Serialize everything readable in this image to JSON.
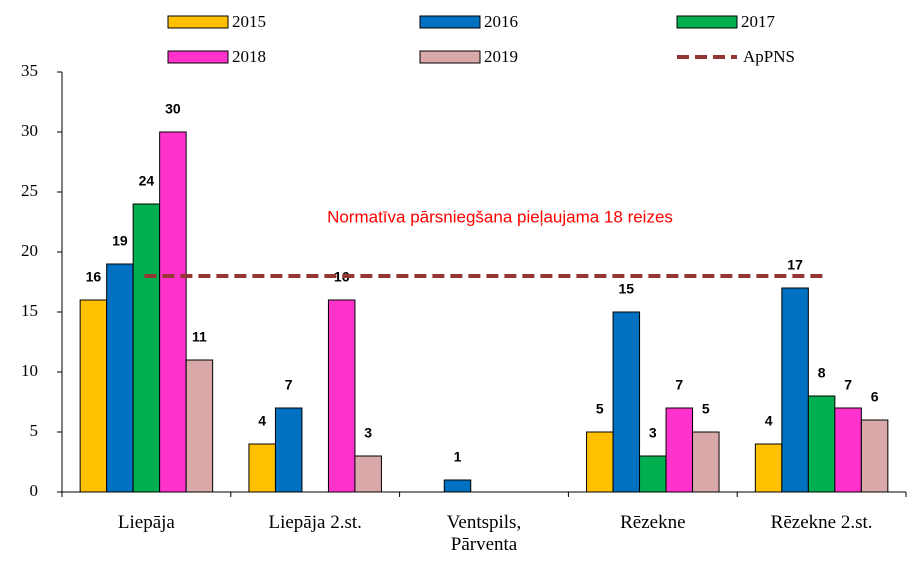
{
  "chart_data": {
    "type": "bar",
    "categories": [
      "Liepāja",
      "Liepāja 2.st.",
      "Ventspils, Pārventa",
      "Rēzekne",
      "Rēzekne 2.st."
    ],
    "series": [
      {
        "name": "2015",
        "color": "#ffc000",
        "values": [
          16,
          4,
          null,
          5,
          4
        ]
      },
      {
        "name": "2016",
        "color": "#0070c0",
        "values": [
          19,
          7,
          1,
          15,
          17
        ]
      },
      {
        "name": "2017",
        "color": "#00b050",
        "values": [
          24,
          null,
          null,
          3,
          8
        ]
      },
      {
        "name": "2018",
        "color": "#ff33cc",
        "values": [
          30,
          16,
          null,
          7,
          7
        ]
      },
      {
        "name": "2019",
        "color": "#d9a9a9",
        "values": [
          11,
          3,
          null,
          5,
          6
        ]
      }
    ],
    "reference_line": {
      "name": "ApPNS",
      "value": 18,
      "color": "#943634",
      "dashed": true
    },
    "annotation": "Normatīva pārsniegšana pieļaujama 18 reizes",
    "ylim": [
      0,
      35
    ],
    "yticks": [
      0,
      5,
      10,
      15,
      20,
      25,
      30,
      35
    ],
    "grid": false,
    "legend": "top"
  }
}
